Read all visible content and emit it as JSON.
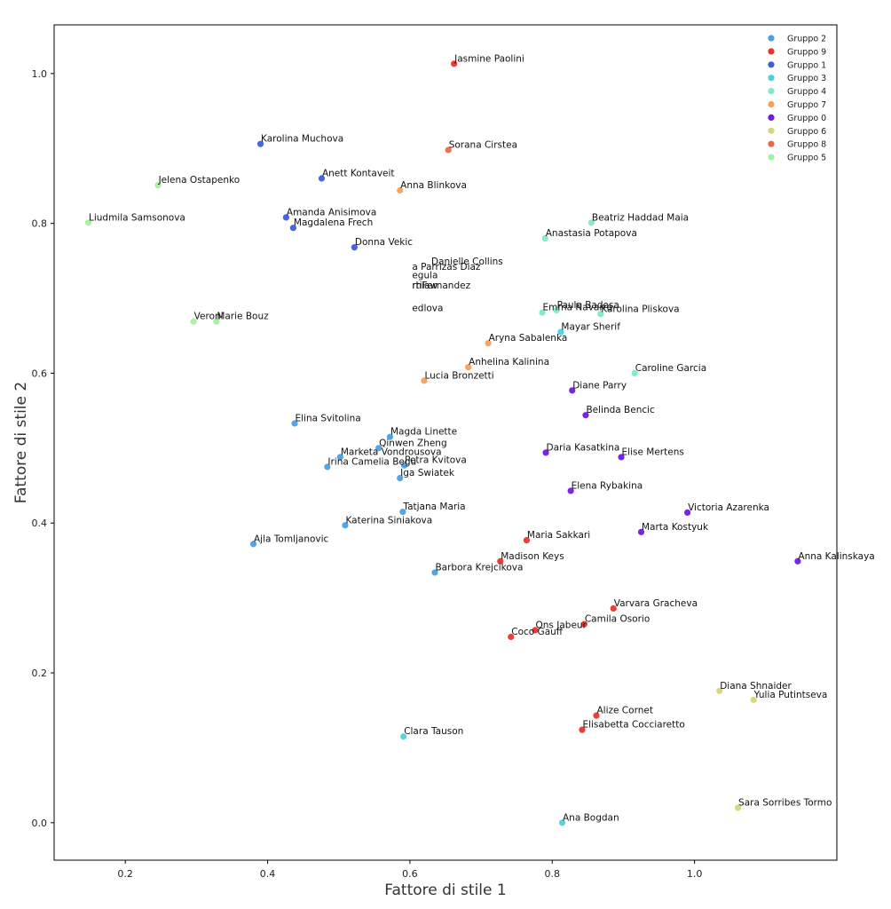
{
  "chart_data": {
    "type": "scatter",
    "title": "",
    "xlabel": "Fattore di stile 1",
    "ylabel": "Fattore di stile 2",
    "xlim": [
      0.1,
      1.2
    ],
    "ylim": [
      -0.05,
      1.065
    ],
    "xticks": [
      0.2,
      0.4,
      0.6,
      0.8,
      1.0
    ],
    "yticks": [
      0.0,
      0.2,
      0.4,
      0.6,
      0.8,
      1.0
    ],
    "legend_position": "top-right",
    "grid": false,
    "series": [
      {
        "name": "Gruppo 2",
        "color": "#4aa0e6",
        "points": [
          {
            "label": "Elina Svitolina",
            "x": 0.438,
            "y": 0.533
          },
          {
            "label": "Magda Linette",
            "x": 0.572,
            "y": 0.515
          },
          {
            "label": "Qinwen Zheng",
            "x": 0.556,
            "y": 0.5
          },
          {
            "label": "Marketa Vondrousova",
            "x": 0.502,
            "y": 0.488
          },
          {
            "label": "Irina Camelia Begu",
            "x": 0.484,
            "y": 0.475
          },
          {
            "label": "Petra Kvitova",
            "x": 0.592,
            "y": 0.477
          },
          {
            "label": "Iga Swiatek",
            "x": 0.586,
            "y": 0.46
          },
          {
            "label": "Tatjana Maria",
            "x": 0.59,
            "y": 0.415
          },
          {
            "label": "Katerina Siniakova",
            "x": 0.509,
            "y": 0.397
          },
          {
            "label": "Ajla Tomljanovic",
            "x": 0.38,
            "y": 0.372
          },
          {
            "label": "Barbora Krejcikova",
            "x": 0.635,
            "y": 0.334
          }
        ]
      },
      {
        "name": "Gruppo 9",
        "color": "#e8352b",
        "points": [
          {
            "label": "Jasmine Paolini",
            "x": 0.662,
            "y": 1.013
          },
          {
            "label": "Maria Sakkari",
            "x": 0.764,
            "y": 0.377
          },
          {
            "label": "Madison Keys",
            "x": 0.727,
            "y": 0.349
          },
          {
            "label": "Varvara Gracheva",
            "x": 0.886,
            "y": 0.286
          },
          {
            "label": "Camila Osorio",
            "x": 0.845,
            "y": 0.265
          },
          {
            "label": "Ons Jabeur",
            "x": 0.776,
            "y": 0.257
          },
          {
            "label": "Coco Gauff",
            "x": 0.742,
            "y": 0.248
          },
          {
            "label": "Alize Cornet",
            "x": 0.862,
            "y": 0.143
          },
          {
            "label": "Elisabetta Cocciaretto",
            "x": 0.842,
            "y": 0.124
          }
        ]
      },
      {
        "name": "Gruppo 1",
        "color": "#3b5fe0",
        "points": [
          {
            "label": "Karolina Muchova",
            "x": 0.39,
            "y": 0.906
          },
          {
            "label": "Anett Kontaveit",
            "x": 0.476,
            "y": 0.86
          },
          {
            "label": "Amanda Anisimova",
            "x": 0.426,
            "y": 0.808
          },
          {
            "label": "Magdalena Frech",
            "x": 0.436,
            "y": 0.794
          },
          {
            "label": "Donna Vekic",
            "x": 0.522,
            "y": 0.768
          }
        ]
      },
      {
        "name": "Gruppo 3",
        "color": "#4fd1d9",
        "points": [
          {
            "label": "Mayar Sherif",
            "x": 0.812,
            "y": 0.655
          },
          {
            "label": "Clara Tauson",
            "x": 0.591,
            "y": 0.115
          },
          {
            "label": "Ana Bogdan",
            "x": 0.814,
            "y": 0.0
          }
        ]
      },
      {
        "name": "Gruppo 4",
        "color": "#7fe8c8",
        "points": [
          {
            "label": "Beatriz Haddad Maia",
            "x": 0.855,
            "y": 0.801
          },
          {
            "label": "Anastasia Potapova",
            "x": 0.79,
            "y": 0.78
          },
          {
            "label": "Emma Navarro",
            "x": 0.786,
            "y": 0.681
          },
          {
            "label": "Paula Badosa",
            "x": 0.806,
            "y": 0.684
          },
          {
            "label": "Karolina Pliskova",
            "x": 0.868,
            "y": 0.679
          },
          {
            "label": "Caroline Garcia",
            "x": 0.916,
            "y": 0.6
          }
        ]
      },
      {
        "name": "Gruppo 7",
        "color": "#f5a05a",
        "points": [
          {
            "label": "Anna Blinkova",
            "x": 0.586,
            "y": 0.844
          },
          {
            "label": "Aryna Sabalenka",
            "x": 0.71,
            "y": 0.64
          },
          {
            "label": "Anhelina Kalinina",
            "x": 0.682,
            "y": 0.608
          },
          {
            "label": "Lucia Bronzetti",
            "x": 0.62,
            "y": 0.59
          }
        ]
      },
      {
        "name": "Gruppo 0",
        "color": "#7119e6",
        "points": [
          {
            "label": "Diane Parry",
            "x": 0.828,
            "y": 0.577
          },
          {
            "label": "Belinda Bencic",
            "x": 0.847,
            "y": 0.544
          },
          {
            "label": "Daria Kasatkina",
            "x": 0.791,
            "y": 0.494
          },
          {
            "label": "Elise Mertens",
            "x": 0.897,
            "y": 0.488
          },
          {
            "label": "Elena Rybakina",
            "x": 0.826,
            "y": 0.443
          },
          {
            "label": "Victoria Azarenka",
            "x": 0.99,
            "y": 0.414
          },
          {
            "label": "Marta Kostyuk",
            "x": 0.925,
            "y": 0.388
          },
          {
            "label": "Anna Kalinskaya",
            "x": 1.145,
            "y": 0.349
          }
        ]
      },
      {
        "name": "Gruppo 6",
        "color": "#d6d67a",
        "points": [
          {
            "label": "Diana Shnaider",
            "x": 1.035,
            "y": 0.176
          },
          {
            "label": "Yulia Putintseva",
            "x": 1.083,
            "y": 0.164
          },
          {
            "label": "Sara Sorribes Tormo",
            "x": 1.061,
            "y": 0.02
          }
        ]
      },
      {
        "name": "Gruppo 8",
        "color": "#e86a4a",
        "points": [
          {
            "label": "Sorana Cirstea",
            "x": 0.654,
            "y": 0.898
          }
        ]
      },
      {
        "name": "Gruppo 5",
        "color": "#a6f0a0",
        "points": [
          {
            "label": "Jelena Ostapenko",
            "x": 0.246,
            "y": 0.851
          },
          {
            "label": "Liudmila Samsonova",
            "x": 0.148,
            "y": 0.801
          },
          {
            "label": "Veronika Kudermetova",
            "x": 0.296,
            "y": 0.669
          },
          {
            "label": "Marie Bouzkova",
            "x": 0.328,
            "y": 0.669
          }
        ]
      }
    ],
    "floating_text": [
      {
        "text": "a Parrizas Diaz",
        "x": 0.603,
        "y": 0.738
      },
      {
        "text": "Danielle Collins",
        "x": 0.63,
        "y": 0.745
      },
      {
        "text": "egula",
        "x": 0.603,
        "y": 0.727
      },
      {
        "text": "rtiFernandez",
        "x": 0.603,
        "y": 0.713
      },
      {
        "text": "rhiaw",
        "x": 0.603,
        "y": 0.713
      },
      {
        "text": "edlova",
        "x": 0.603,
        "y": 0.683
      }
    ],
    "point_labels_override": [
      {
        "label": "Veronika Kudermetova",
        "display": "Veroni"
      },
      {
        "label": "Marie Bouzkova",
        "display": "Marie Bouz"
      }
    ]
  }
}
